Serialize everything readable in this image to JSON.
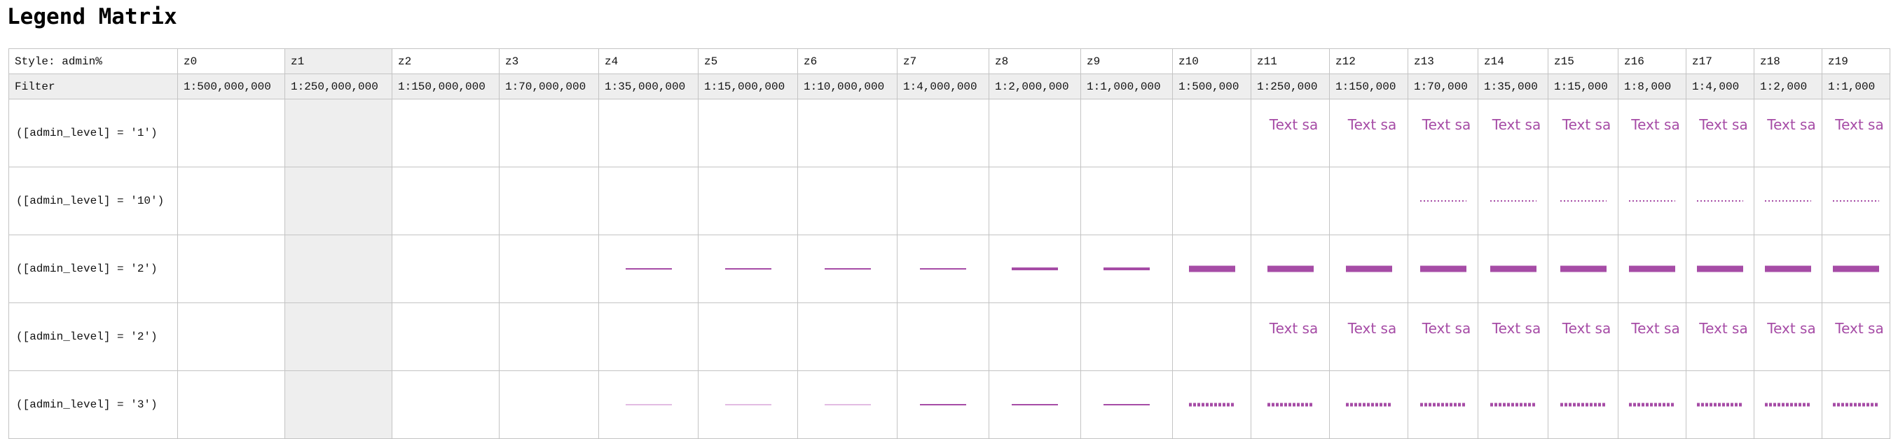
{
  "title": "Legend Matrix",
  "colors": {
    "accent": "#a64ca6",
    "accent_light": "#d9a6d9",
    "shade": "#eeeeee",
    "border": "#c4c4c4"
  },
  "header": {
    "style_label": "Style: admin%",
    "zooms": [
      "z0",
      "z1",
      "z2",
      "z3",
      "z4",
      "z5",
      "z6",
      "z7",
      "z8",
      "z9",
      "z10",
      "z11",
      "z12",
      "z13",
      "z14",
      "z15",
      "z16",
      "z17",
      "z18",
      "z19"
    ]
  },
  "filter_row": {
    "label": "Filter",
    "scales": [
      "1:500,000,000",
      "1:250,000,000",
      "1:150,000,000",
      "1:70,000,000",
      "1:35,000,000",
      "1:15,000,000",
      "1:10,000,000",
      "1:4,000,000",
      "1:2,000,000",
      "1:1,000,000",
      "1:500,000",
      "1:250,000",
      "1:150,000",
      "1:70,000",
      "1:35,000",
      "1:15,000",
      "1:8,000",
      "1:4,000",
      "1:2,000",
      "1:1,000"
    ]
  },
  "rules": [
    {
      "filter": "([admin_level] = '1')",
      "cells": [
        "",
        "",
        "",
        "",
        "",
        "",
        "",
        "",
        "",
        "",
        "",
        "text",
        "text",
        "text",
        "text",
        "text",
        "text",
        "text",
        "text",
        "text"
      ]
    },
    {
      "filter": "([admin_level] = '10')",
      "cells": [
        "",
        "",
        "",
        "",
        "",
        "",
        "",
        "",
        "",
        "",
        "",
        "",
        "",
        "dots",
        "dots",
        "dots",
        "dots",
        "dots",
        "dots",
        "dots"
      ]
    },
    {
      "filter": "([admin_level] = '2')",
      "cells": [
        "",
        "",
        "",
        "",
        "thin",
        "thin",
        "thin",
        "thin",
        "medium",
        "medium",
        "thick",
        "thick",
        "thick",
        "thick",
        "thick",
        "thick",
        "thick",
        "thick",
        "thick",
        "thick"
      ]
    },
    {
      "filter": "([admin_level] = '2')",
      "cells": [
        "",
        "",
        "",
        "",
        "",
        "",
        "",
        "",
        "",
        "",
        "",
        "text",
        "text",
        "text",
        "text",
        "text",
        "text",
        "text",
        "text",
        "text"
      ]
    },
    {
      "filter": "([admin_level] = '3')",
      "cells": [
        "",
        "",
        "",
        "",
        "faint",
        "faint",
        "faint",
        "thin",
        "thin",
        "thin",
        "dash",
        "dash",
        "dash",
        "dash",
        "dash",
        "dash",
        "dash",
        "dash",
        "dash",
        "dash"
      ]
    }
  ],
  "sample_text": "Text sa"
}
